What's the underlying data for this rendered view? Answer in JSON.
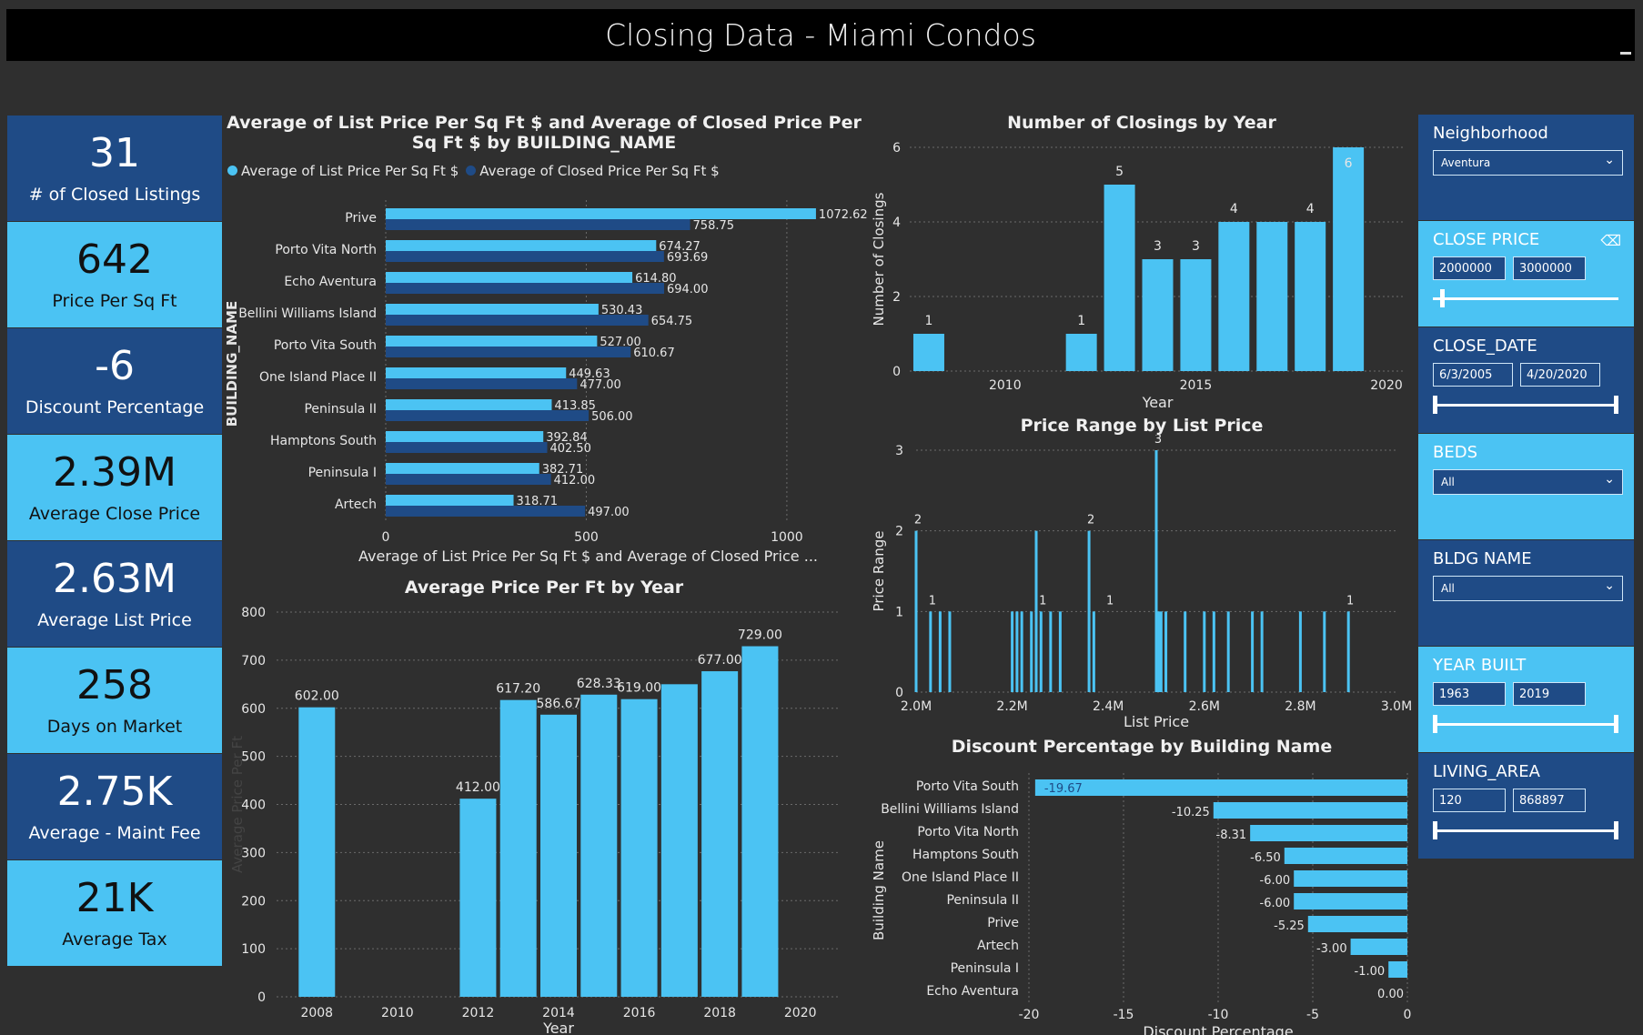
{
  "header": {
    "title": "Closing Data - Miami Condos"
  },
  "kpis": [
    {
      "value": "31",
      "label": "# of Closed Listings"
    },
    {
      "value": "642",
      "label": "Price Per Sq Ft"
    },
    {
      "value": "-6",
      "label": "Discount Percentage"
    },
    {
      "value": "2.39M",
      "label": "Average Close Price"
    },
    {
      "value": "2.63M",
      "label": "Average List Price"
    },
    {
      "value": "258",
      "label": "Days on Market"
    },
    {
      "value": "2.75K",
      "label": "Average - Maint Fee"
    },
    {
      "value": "21K",
      "label": "Average Tax"
    }
  ],
  "colors": {
    "light_blue": "#4bc3f3",
    "dark_blue": "#1f4b86",
    "background": "#2f2f2f"
  },
  "filters": {
    "neighborhood": {
      "title": "Neighborhood",
      "value": "Aventura"
    },
    "close_price": {
      "title": "CLOSE PRICE",
      "min": "2000000",
      "max": "3000000",
      "level": [
        0.0,
        0.02
      ]
    },
    "close_date": {
      "title": "CLOSE_DATE",
      "min": "6/3/2005",
      "max": "4/20/2020"
    },
    "beds": {
      "title": "BEDS",
      "value": "All"
    },
    "bldg_name": {
      "title": "BLDG NAME",
      "value": "All"
    },
    "year_built": {
      "title": "YEAR BUILT",
      "min": "1963",
      "max": "2019"
    },
    "living_area": {
      "title": "LIVING_AREA",
      "min": "120",
      "max": "868897"
    }
  },
  "chart_data": [
    {
      "type": "bar",
      "orientation": "horizontal",
      "title": "Average of List Price Per Sq Ft $ and Average of Closed Price Per Sq Ft $ by BUILDING_NAME",
      "xlabel": "Average of List Price Per Sq Ft $ and Average of Closed Price ...",
      "ylabel": "BUILDING_NAME",
      "xlim": [
        0,
        1100
      ],
      "xticks": [
        "0",
        "500",
        "1000"
      ],
      "categories": [
        "Prive",
        "Porto Vita North",
        "Echo Aventura",
        "Bellini Williams Island",
        "Porto Vita South",
        "One Island Place II",
        "Peninsula II",
        "Hamptons South",
        "Peninsula I",
        "Artech"
      ],
      "series": [
        {
          "name": "Average of List Price Per Sq Ft $",
          "color": "#4bc3f3",
          "values": [
            1072.62,
            674.27,
            614.8,
            530.43,
            527.0,
            449.63,
            413.85,
            392.84,
            382.71,
            318.71
          ],
          "labels": [
            "1072.62",
            "674.27",
            "614.80",
            "530.43",
            "527.00",
            "449.63",
            "413.85",
            "392.84",
            "382.71",
            "318.71"
          ]
        },
        {
          "name": "Average of Closed Price Per Sq Ft $",
          "color": "#1f4b86",
          "values": [
            758.75,
            693.69,
            694.0,
            654.75,
            610.67,
            477.0,
            506.0,
            402.5,
            412.0,
            497.0
          ],
          "labels": [
            "758.75",
            "693.69",
            "694.00",
            "654.75",
            "610.67",
            "477.00",
            "506.00",
            "402.50",
            "412.00",
            "497.00"
          ]
        }
      ],
      "legend": "top-left"
    },
    {
      "type": "bar",
      "title": "Number of Closings by Year",
      "xlabel": "Year",
      "ylabel": "Number of Closings",
      "ylim": [
        0,
        6
      ],
      "yticks": [
        "0",
        "2",
        "4",
        "6"
      ],
      "xticks": [
        "2010",
        "2015",
        "2020"
      ],
      "x": [
        2008,
        2012,
        2013,
        2014,
        2015,
        2016,
        2017,
        2018,
        2019
      ],
      "values": [
        1,
        1,
        5,
        3,
        3,
        4,
        4,
        4,
        6
      ],
      "labels": [
        "1",
        "1",
        "5",
        "3",
        "3",
        "4",
        "",
        "4",
        "6"
      ],
      "xlim": [
        2007.5,
        2020.5
      ]
    },
    {
      "type": "bar",
      "title": "Price Range by List Price",
      "xlabel": "List Price",
      "ylabel": "Price Range",
      "ylim": [
        0,
        3
      ],
      "yticks": [
        "0",
        "1",
        "2",
        "3"
      ],
      "xticks": [
        "2.0M",
        "2.2M",
        "2.4M",
        "2.6M",
        "2.8M",
        "3.0M"
      ],
      "xlim": [
        2.0,
        3.0
      ],
      "x": [
        2.0,
        2.03,
        2.05,
        2.07,
        2.2,
        2.21,
        2.22,
        2.24,
        2.25,
        2.26,
        2.28,
        2.3,
        2.36,
        2.37,
        2.5,
        2.505,
        2.51,
        2.52,
        2.56,
        2.6,
        2.62,
        2.65,
        2.7,
        2.72,
        2.8,
        2.85,
        2.9
      ],
      "values": [
        2,
        1,
        1,
        1,
        1,
        1,
        1,
        1,
        2,
        1,
        1,
        1,
        2,
        1,
        3,
        1,
        1,
        1,
        1,
        1,
        1,
        1,
        1,
        1,
        1,
        1,
        1
      ],
      "data_labels": [
        {
          "x": 2.0,
          "text": "2"
        },
        {
          "x": 2.03,
          "text": "1"
        },
        {
          "x": 2.26,
          "text": "1"
        },
        {
          "x": 2.36,
          "text": "2"
        },
        {
          "x": 2.4,
          "text": "1"
        },
        {
          "x": 2.5,
          "text": "3"
        },
        {
          "x": 2.9,
          "text": "1"
        }
      ]
    },
    {
      "type": "bar",
      "title": "Average Price Per Ft by Year",
      "xlabel": "Year",
      "ylabel": "Average Price Per Ft",
      "ylim": [
        0,
        800
      ],
      "yticks": [
        "0",
        "100",
        "200",
        "300",
        "400",
        "500",
        "600",
        "700",
        "800"
      ],
      "xticks": [
        "2008",
        "2010",
        "2012",
        "2014",
        "2016",
        "2018",
        "2020"
      ],
      "xlim": [
        2007,
        2021
      ],
      "x": [
        2008,
        2012,
        2013,
        2014,
        2015,
        2016,
        2017,
        2018,
        2019
      ],
      "values": [
        602.0,
        412.0,
        617.2,
        586.67,
        628.33,
        619.0,
        650.0,
        677.0,
        729.0
      ],
      "labels": [
        "602.00",
        "412.00",
        "617.20",
        "586.67",
        "628.33",
        "619.00",
        "",
        "677.00",
        "729.00"
      ]
    },
    {
      "type": "bar",
      "orientation": "horizontal",
      "title": "Discount Percentage by Building Name",
      "xlabel": "Discount Percentage",
      "ylabel": "Building Name",
      "xlim": [
        -20,
        0
      ],
      "xticks": [
        "-20",
        "-15",
        "-10",
        "-5",
        "0"
      ],
      "categories": [
        "Porto Vita South",
        "Bellini Williams Island",
        "Porto Vita North",
        "Hamptons South",
        "One Island Place II",
        "Peninsula II",
        "Prive",
        "Artech",
        "Peninsula I",
        "Echo Aventura"
      ],
      "values": [
        -19.67,
        -10.25,
        -8.31,
        -6.5,
        -6.0,
        -6.0,
        -5.25,
        -3.0,
        -1.0,
        0.0
      ],
      "labels": [
        "-19.67",
        "-10.25",
        "-8.31",
        "-6.50",
        "-6.00",
        "-6.00",
        "-5.25",
        "-3.00",
        "-1.00",
        "0.00"
      ]
    }
  ]
}
